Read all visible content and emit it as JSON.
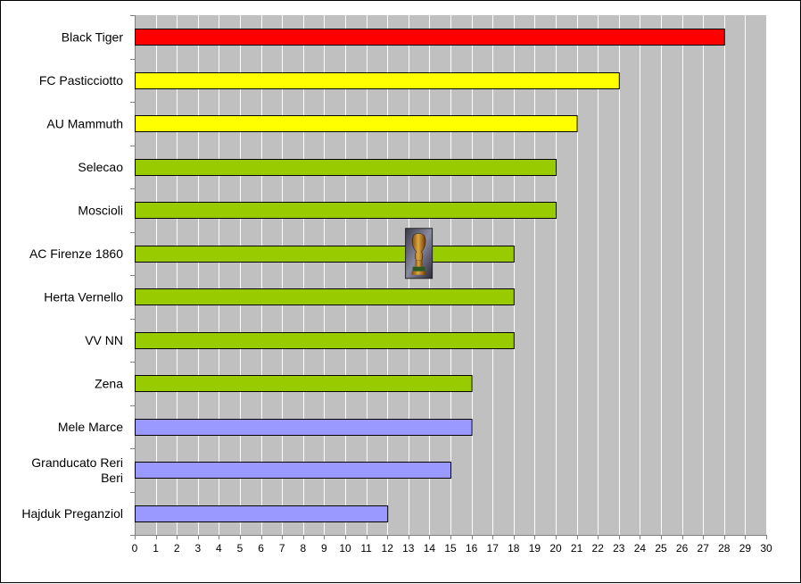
{
  "chart_data": {
    "type": "bar",
    "orientation": "horizontal",
    "title": "",
    "xlabel": "",
    "ylabel": "",
    "xlim": [
      0,
      30
    ],
    "x_ticks": [
      0,
      1,
      2,
      3,
      4,
      5,
      6,
      7,
      8,
      9,
      10,
      11,
      12,
      13,
      14,
      15,
      16,
      17,
      18,
      19,
      20,
      21,
      22,
      23,
      24,
      25,
      26,
      27,
      28,
      29,
      30
    ],
    "grid": true,
    "legend": "none",
    "plot_background": "#c0c0c0",
    "categories": [
      [
        "Black Tiger"
      ],
      [
        "FC Pasticciotto"
      ],
      [
        "AU Mammuth"
      ],
      [
        "Selecao"
      ],
      [
        "Moscioli"
      ],
      [
        "AC Firenze 1860"
      ],
      [
        "Herta Vernello"
      ],
      [
        "VV NN"
      ],
      [
        "Zena"
      ],
      [
        "Mele Marce"
      ],
      [
        "Granducato Reri",
        "Beri"
      ],
      [
        "Hajduk Preganziol"
      ]
    ],
    "values": [
      28,
      23,
      21,
      20,
      20,
      18,
      18,
      18,
      16,
      16,
      15,
      12
    ],
    "bar_colors": [
      "#ff0000",
      "#ffff00",
      "#ffff00",
      "#99cc00",
      "#99cc00",
      "#99cc00",
      "#99cc00",
      "#99cc00",
      "#99cc00",
      "#9999ff",
      "#9999ff",
      "#9999ff"
    ],
    "annotations": [
      {
        "type": "trophy-icon",
        "category_index": 5,
        "x_value": 13.5
      }
    ]
  }
}
